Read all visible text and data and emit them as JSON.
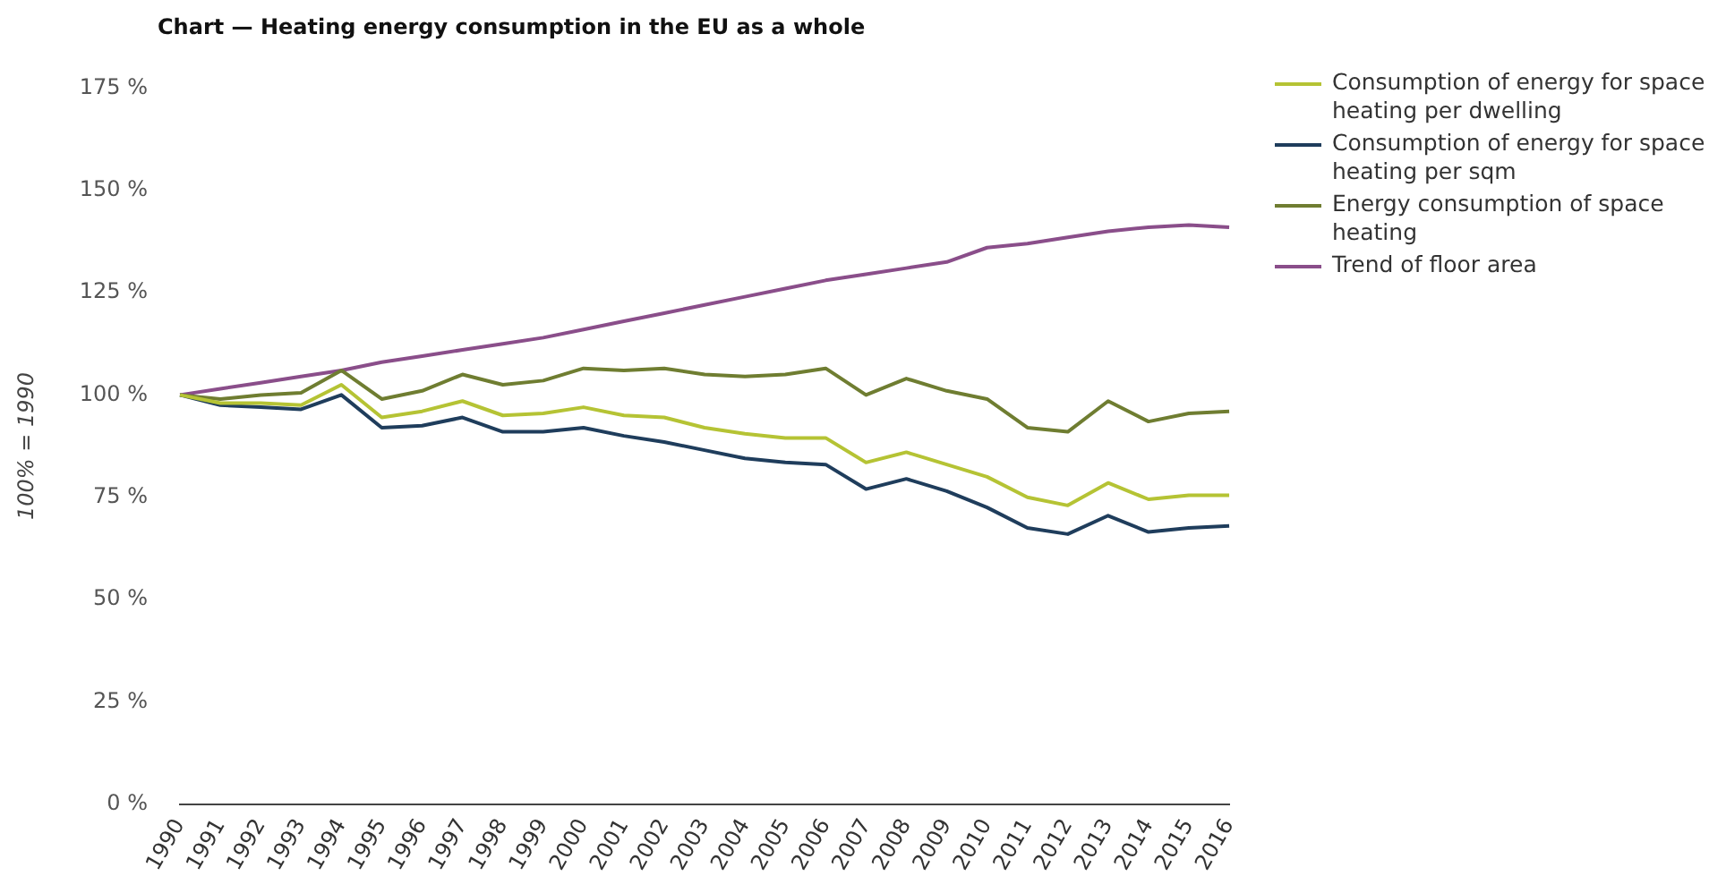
{
  "chart_data": {
    "type": "line",
    "title": "Chart — Heating energy consumption in the EU as a whole",
    "ylabel": "100% = 1990",
    "categories": [
      "1990",
      "1991",
      "1992",
      "1993",
      "1994",
      "1995",
      "1996",
      "1997",
      "1998",
      "1999",
      "2000",
      "2001",
      "2002",
      "2003",
      "2004",
      "2005",
      "2006",
      "2007",
      "2008",
      "2009",
      "2010",
      "2011",
      "2012",
      "2013",
      "2014",
      "2015",
      "2016"
    ],
    "series": [
      {
        "name": "Consumption of energy for space heating per dwelling",
        "color": "#b5c334",
        "values": [
          100,
          98,
          98,
          97.5,
          102.5,
          94.5,
          96,
          98.5,
          95,
          95.5,
          97,
          95,
          94.5,
          92,
          90.5,
          89.5,
          89.5,
          83.5,
          86,
          83,
          80,
          75,
          73,
          78.5,
          74.5,
          75.5,
          75.5
        ]
      },
      {
        "name": "Consumption of energy for space heating per sqm",
        "color": "#1f3d5c",
        "values": [
          100,
          97.5,
          97,
          96.5,
          100,
          92,
          92.5,
          94.5,
          91,
          91,
          92,
          90,
          88.5,
          86.5,
          84.5,
          83.5,
          83,
          77,
          79.5,
          76.5,
          72.5,
          67.5,
          66,
          70.5,
          66.5,
          67.5,
          68
        ]
      },
      {
        "name": "Energy consumption of space heating",
        "color": "#6f7d31",
        "values": [
          100,
          99,
          100,
          100.5,
          106,
          99,
          101,
          105,
          102.5,
          103.5,
          106.5,
          106,
          106.5,
          105,
          104.5,
          105,
          106.5,
          100,
          104,
          101,
          99,
          92,
          91,
          98.5,
          93.5,
          95.5,
          96
        ]
      },
      {
        "name": "Trend of floor area",
        "color": "#8a4e8a",
        "values": [
          100,
          101.5,
          103,
          104.5,
          106,
          108,
          109.5,
          111,
          112.5,
          114,
          116,
          118,
          120,
          122,
          124,
          126,
          128,
          129.5,
          131,
          132.5,
          136,
          137,
          138.5,
          140,
          141,
          141.5,
          141
        ]
      }
    ],
    "ylim": [
      0,
      175
    ],
    "yticks": [
      {
        "value": 0,
        "label": "0 %"
      },
      {
        "value": 25,
        "label": "25 %"
      },
      {
        "value": 50,
        "label": "50 %"
      },
      {
        "value": 75,
        "label": "75 %"
      },
      {
        "value": 100,
        "label": "100 %"
      },
      {
        "value": 125,
        "label": "125 %"
      },
      {
        "value": 150,
        "label": "150 %"
      },
      {
        "value": 175,
        "label": "175 %"
      }
    ],
    "grid": false,
    "legend": "top right",
    "marker": "none",
    "line_style": "solid"
  }
}
